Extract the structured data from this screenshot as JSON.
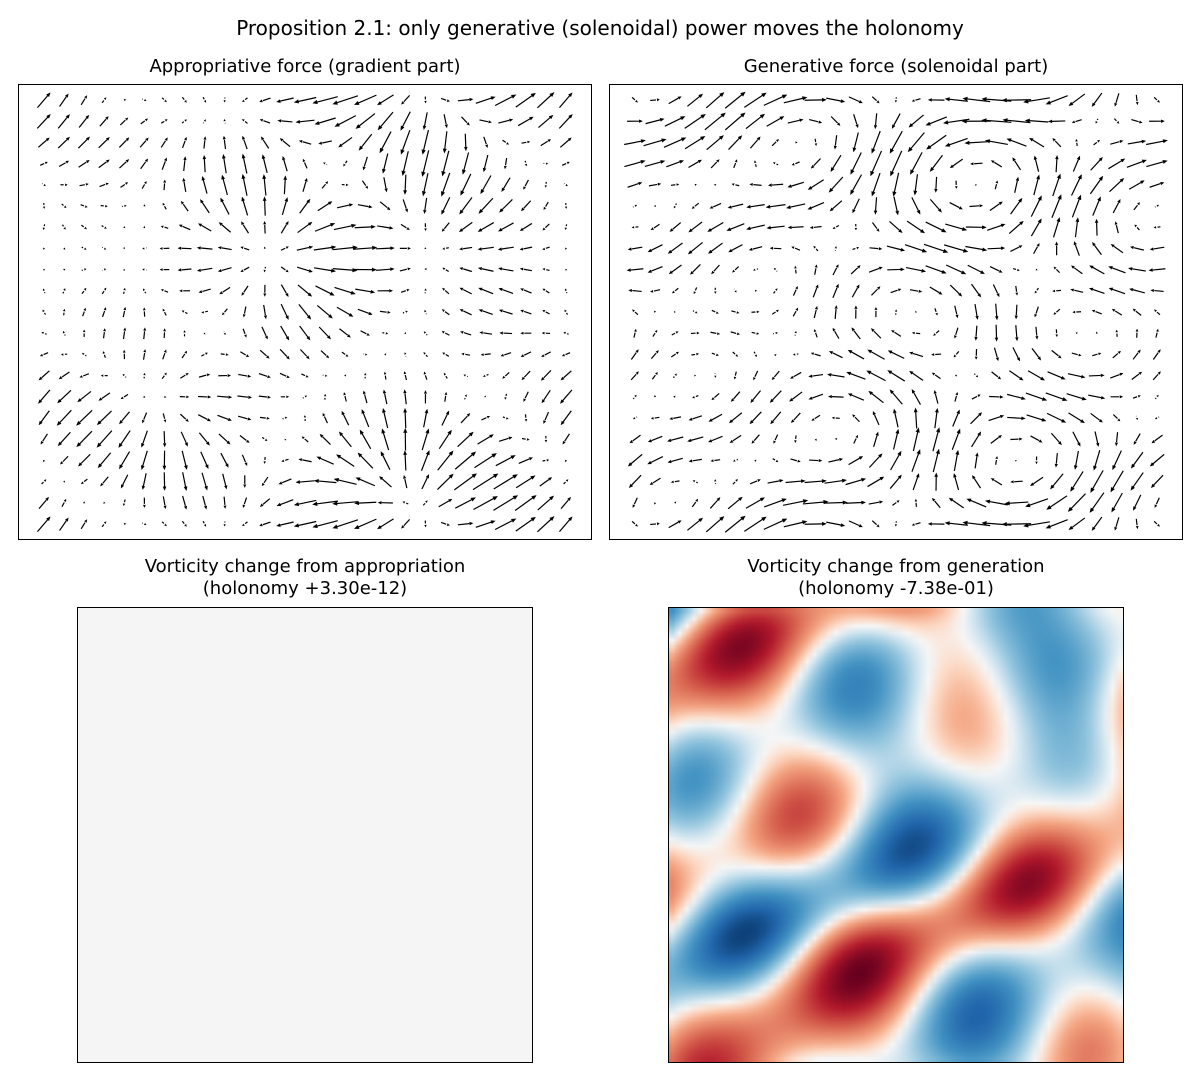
{
  "figure": {
    "suptitle": "Proposition 2.1: only generative (solenoidal) power moves the holonomy"
  },
  "chart_data": [
    {
      "type": "quiver",
      "title": "Appropriative force (gradient part)",
      "grid_nx": 27,
      "grid_ny": 21,
      "field": "gradient",
      "axes_visible": false,
      "arrow_color": "#000000"
    },
    {
      "type": "quiver",
      "title": "Generative force (solenoidal part)",
      "grid_nx": 27,
      "grid_ny": 21,
      "field": "solenoidal",
      "axes_visible": false,
      "arrow_color": "#000000"
    },
    {
      "type": "heatmap",
      "title_line1": "Vorticity change from appropriation",
      "title_line2": "(holonomy +3.30e-12)",
      "holonomy": 3.3e-12,
      "colormap": "RdBu_r",
      "uniform_color": "#f5f5f5",
      "grid": 64
    },
    {
      "type": "heatmap",
      "title_line1": "Vorticity change from generation",
      "title_line2": "(holonomy -7.38e-01)",
      "holonomy": -0.738,
      "colormap": "RdBu_r",
      "grid": 64,
      "vmin": -1,
      "vmax": 1
    }
  ]
}
